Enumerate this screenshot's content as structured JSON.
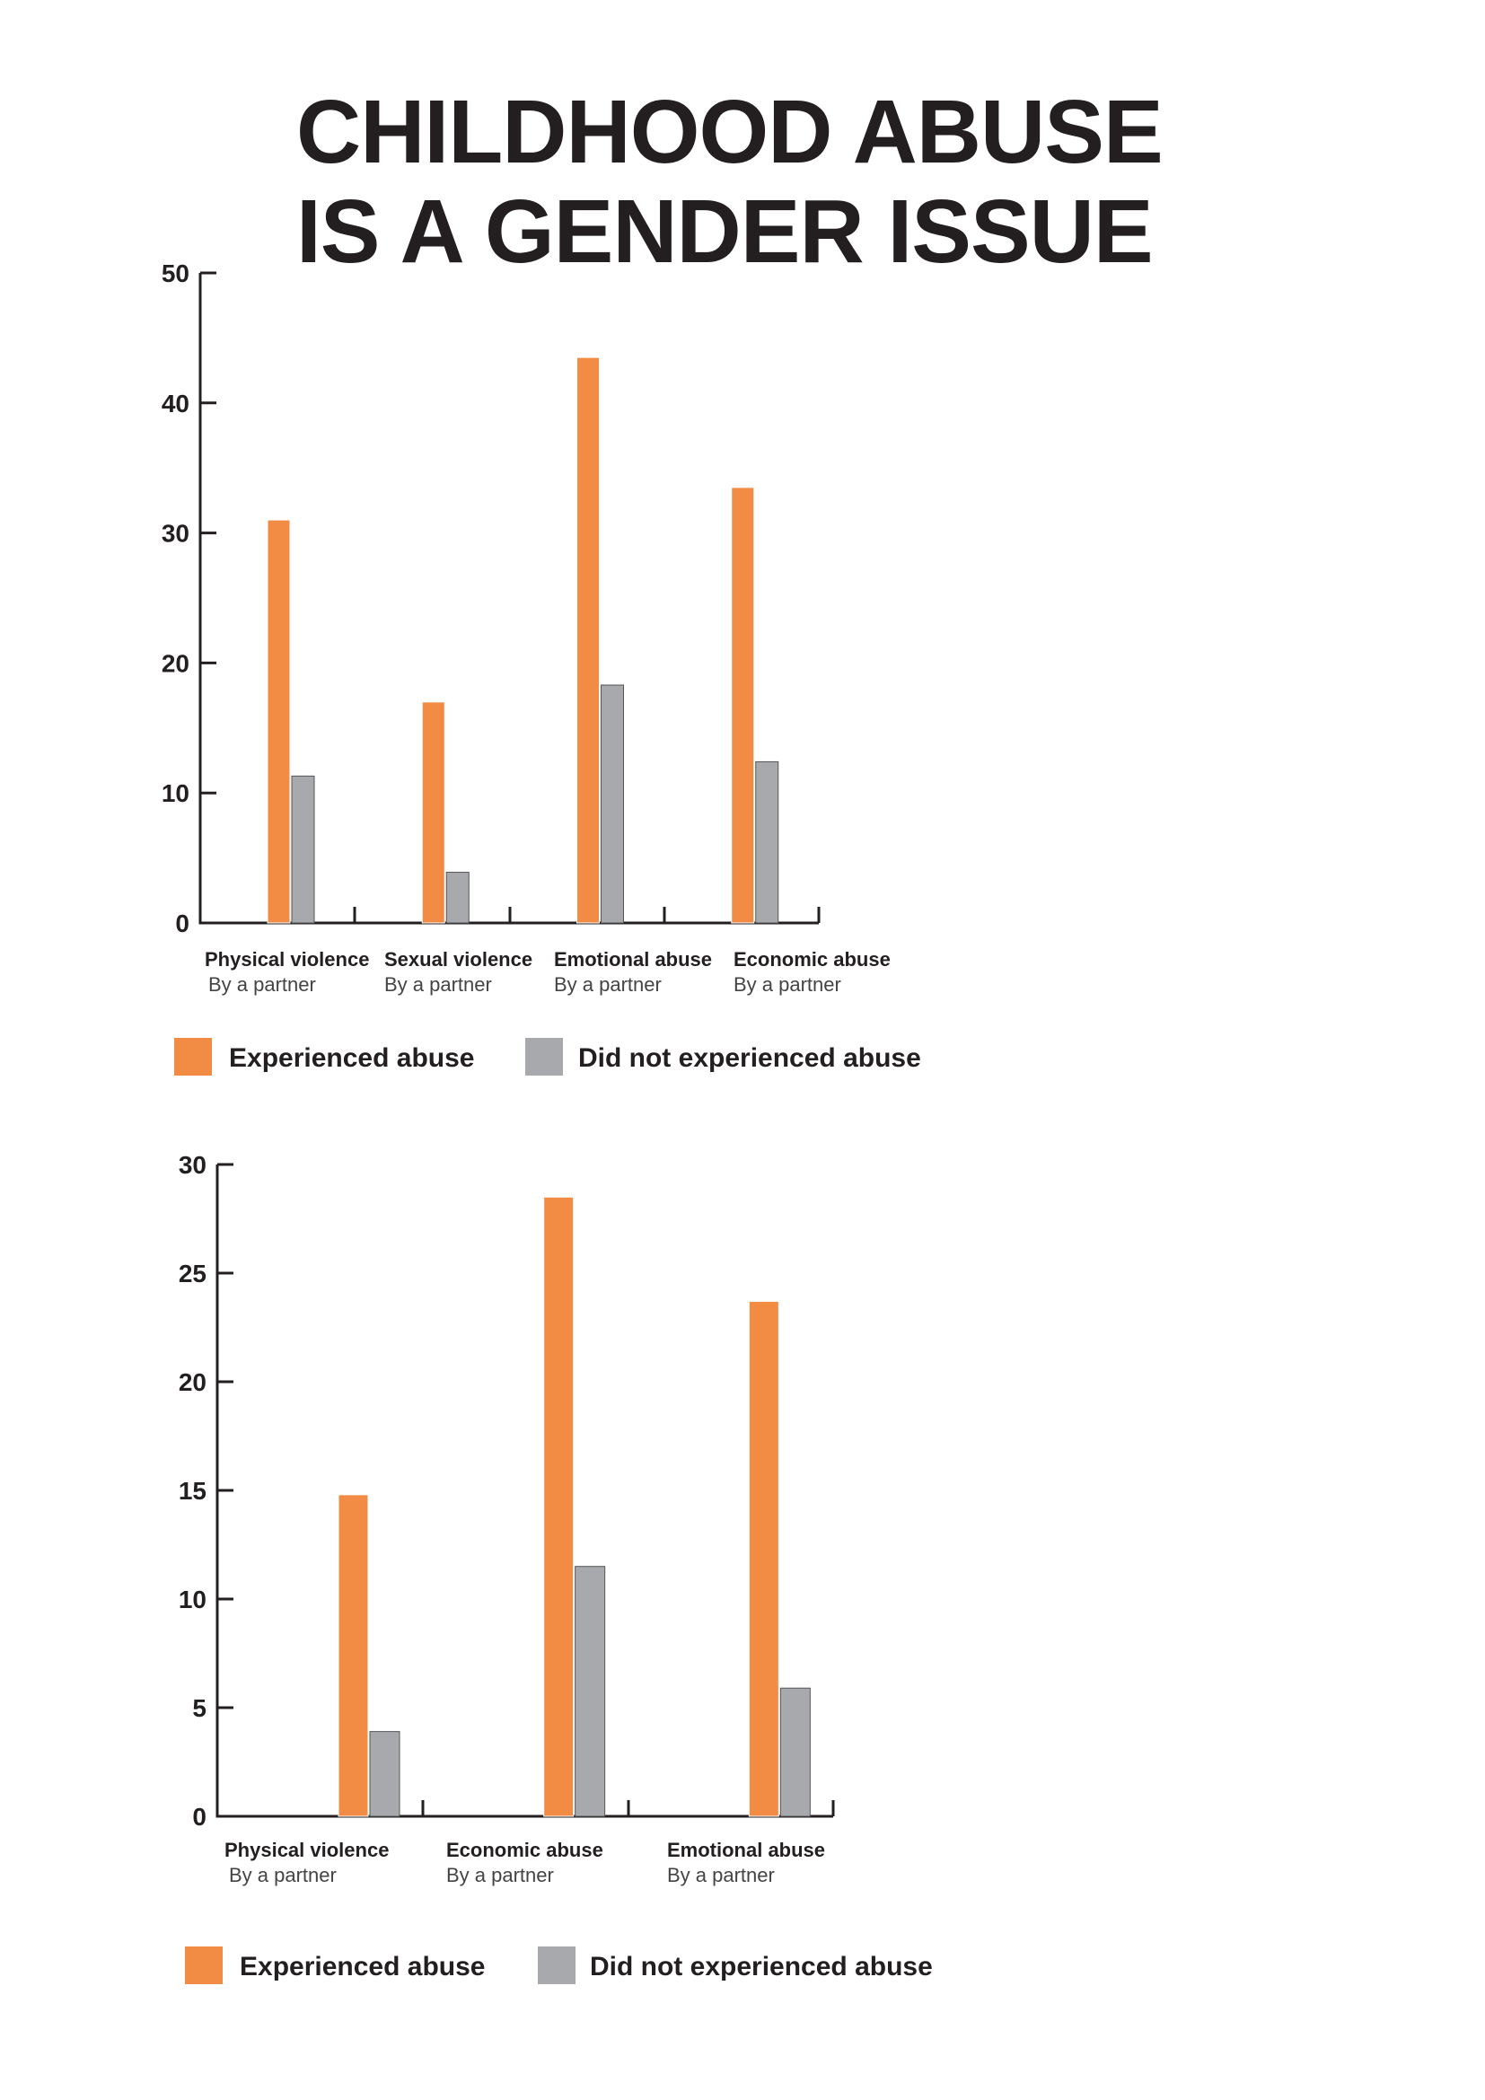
{
  "title_lines": [
    "CHILDHOOD ABUSE",
    "IS A GENDER ISSUE"
  ],
  "colors": {
    "experienced": "#f28c45",
    "not_experienced": "#a7a9ac",
    "axis": "#231f20"
  },
  "chart_data": [
    {
      "type": "bar",
      "categories": [
        "Physical violence",
        "Sexual violence",
        "Emotional abuse",
        "Economic abuse"
      ],
      "category_sublabels": [
        "By a partner",
        "By a partner",
        "By a partner",
        "By a partner"
      ],
      "series": [
        {
          "name": "Experienced abuse",
          "values": [
            31,
            17,
            43.5,
            33.5
          ]
        },
        {
          "name": "Did not experienced abuse",
          "values": [
            11.3,
            3.9,
            18.3,
            12.4
          ]
        }
      ],
      "ylim": [
        0,
        50
      ],
      "yticks": [
        0,
        10,
        20,
        30,
        40,
        50
      ],
      "legend_position": "bottom",
      "grid": false
    },
    {
      "type": "bar",
      "categories": [
        "Physical violence",
        "Economic abuse",
        "Emotional abuse"
      ],
      "category_sublabels": [
        "By a partner",
        "By a partner",
        "By a partner"
      ],
      "series": [
        {
          "name": "Experienced abuse",
          "values": [
            14.8,
            28.5,
            23.7
          ]
        },
        {
          "name": "Did not experienced abuse",
          "values": [
            3.9,
            11.5,
            5.9
          ]
        }
      ],
      "ylim": [
        0,
        30
      ],
      "yticks": [
        0,
        5,
        10,
        15,
        20,
        25,
        30
      ],
      "legend_position": "bottom",
      "grid": false
    }
  ]
}
